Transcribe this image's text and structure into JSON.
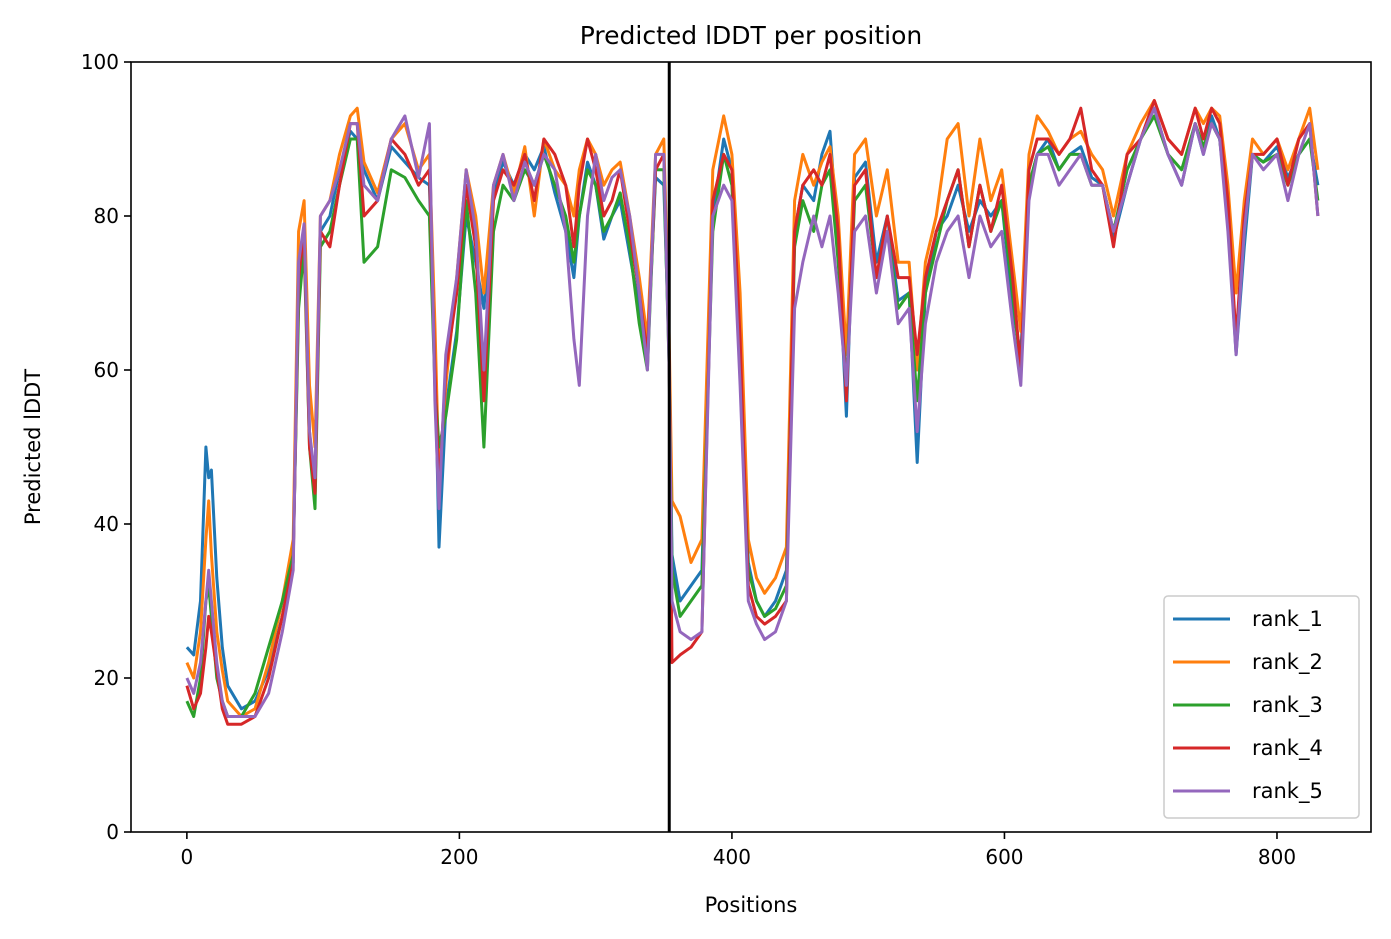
{
  "chart_data": {
    "type": "line",
    "title": "Predicted lDDT per position",
    "xlabel": "Positions",
    "ylabel": "Predicted lDDT",
    "xlim": [
      -41,
      869
    ],
    "ylim": [
      0,
      100
    ],
    "xticks": [
      0,
      200,
      400,
      600,
      800
    ],
    "yticks": [
      0,
      20,
      40,
      60,
      80,
      100
    ],
    "grid": false,
    "legend_position": "lower-right",
    "chain_break_x": 354,
    "series": [
      {
        "name": "rank_1",
        "color": "#1f77b4",
        "x": [
          0,
          5,
          10,
          14,
          16,
          18,
          22,
          26,
          30,
          40,
          50,
          60,
          70,
          78,
          82,
          86,
          90,
          94,
          98,
          105,
          112,
          120,
          125,
          130,
          140,
          150,
          160,
          170,
          178,
          182,
          185,
          190,
          198,
          205,
          212,
          218,
          225,
          232,
          240,
          248,
          255,
          262,
          270,
          278,
          284,
          288,
          294,
          300,
          306,
          312,
          318,
          325,
          332,
          338,
          344,
          350,
          354,
          356,
          362,
          370,
          378,
          386,
          394,
          400,
          406,
          412,
          418,
          424,
          432,
          440,
          446,
          452,
          460,
          466,
          472,
          478,
          484,
          490,
          498,
          506,
          514,
          522,
          530,
          536,
          542,
          550,
          558,
          566,
          574,
          582,
          590,
          598,
          606,
          612,
          618,
          624,
          632,
          640,
          648,
          656,
          664,
          672,
          680,
          690,
          700,
          710,
          720,
          730,
          740,
          746,
          752,
          758,
          764,
          770,
          776,
          782,
          790,
          800,
          808,
          816,
          824,
          830
        ],
        "y": [
          24,
          23,
          30,
          50,
          46,
          47,
          33,
          24,
          19,
          16,
          17,
          21,
          28,
          36,
          70,
          78,
          52,
          44,
          78,
          80,
          86,
          91,
          90,
          86,
          82,
          89,
          87,
          85,
          84,
          62,
          37,
          55,
          65,
          80,
          74,
          68,
          83,
          87,
          84,
          88,
          86,
          89,
          83,
          78,
          72,
          80,
          87,
          84,
          77,
          80,
          82,
          75,
          68,
          62,
          85,
          84,
          62,
          36,
          30,
          32,
          34,
          80,
          90,
          86,
          64,
          35,
          30,
          28,
          30,
          34,
          78,
          84,
          82,
          88,
          91,
          76,
          54,
          85,
          87,
          74,
          80,
          69,
          70,
          48,
          70,
          78,
          80,
          84,
          78,
          82,
          80,
          82,
          68,
          62,
          84,
          88,
          90,
          86,
          88,
          89,
          85,
          84,
          77,
          84,
          90,
          94,
          88,
          84,
          92,
          88,
          93,
          90,
          80,
          62,
          76,
          88,
          87,
          89,
          85,
          88,
          90,
          84
        ]
      },
      {
        "name": "rank_2",
        "color": "#ff7f0e",
        "x": [
          0,
          5,
          10,
          14,
          16,
          18,
          22,
          26,
          30,
          40,
          50,
          60,
          70,
          78,
          82,
          86,
          90,
          94,
          98,
          105,
          112,
          120,
          125,
          130,
          140,
          150,
          160,
          170,
          178,
          182,
          185,
          190,
          198,
          205,
          212,
          218,
          225,
          232,
          240,
          248,
          255,
          262,
          270,
          278,
          284,
          288,
          294,
          300,
          306,
          312,
          318,
          325,
          332,
          338,
          344,
          350,
          354,
          356,
          362,
          370,
          378,
          386,
          394,
          400,
          406,
          412,
          418,
          424,
          432,
          440,
          446,
          452,
          460,
          466,
          472,
          478,
          484,
          490,
          498,
          506,
          514,
          522,
          530,
          536,
          542,
          550,
          558,
          566,
          574,
          582,
          590,
          598,
          606,
          612,
          618,
          624,
          632,
          640,
          648,
          656,
          664,
          672,
          680,
          690,
          700,
          710,
          720,
          730,
          740,
          746,
          752,
          758,
          764,
          770,
          776,
          782,
          790,
          800,
          808,
          816,
          824,
          830
        ],
        "y": [
          22,
          20,
          26,
          38,
          43,
          36,
          26,
          21,
          17,
          15,
          16,
          22,
          30,
          38,
          78,
          82,
          58,
          50,
          80,
          82,
          88,
          93,
          94,
          87,
          83,
          90,
          92,
          86,
          88,
          66,
          46,
          58,
          72,
          86,
          80,
          70,
          84,
          88,
          83,
          89,
          80,
          90,
          86,
          84,
          80,
          86,
          90,
          88,
          84,
          86,
          87,
          80,
          72,
          64,
          88,
          90,
          64,
          43,
          41,
          35,
          38,
          86,
          93,
          88,
          70,
          38,
          33,
          31,
          33,
          37,
          82,
          88,
          84,
          87,
          89,
          80,
          62,
          88,
          90,
          80,
          86,
          74,
          74,
          60,
          74,
          80,
          90,
          92,
          80,
          90,
          82,
          86,
          74,
          65,
          88,
          93,
          91,
          88,
          90,
          91,
          88,
          86,
          80,
          88,
          92,
          95,
          90,
          88,
          94,
          92,
          94,
          93,
          84,
          70,
          82,
          90,
          88,
          90,
          86,
          90,
          94,
          86
        ]
      },
      {
        "name": "rank_3",
        "color": "#2ca02c",
        "x": [
          0,
          5,
          10,
          14,
          16,
          18,
          22,
          26,
          30,
          40,
          50,
          60,
          70,
          78,
          82,
          86,
          90,
          94,
          98,
          105,
          112,
          120,
          125,
          130,
          140,
          150,
          160,
          170,
          178,
          182,
          185,
          190,
          198,
          205,
          212,
          218,
          225,
          232,
          240,
          248,
          255,
          262,
          270,
          278,
          284,
          288,
          294,
          300,
          306,
          312,
          318,
          325,
          332,
          338,
          344,
          350,
          354,
          356,
          362,
          370,
          378,
          386,
          394,
          400,
          406,
          412,
          418,
          424,
          432,
          440,
          446,
          452,
          460,
          466,
          472,
          478,
          484,
          490,
          498,
          506,
          514,
          522,
          530,
          536,
          542,
          550,
          558,
          566,
          574,
          582,
          590,
          598,
          606,
          612,
          618,
          624,
          632,
          640,
          648,
          656,
          664,
          672,
          680,
          690,
          700,
          710,
          720,
          730,
          740,
          746,
          752,
          758,
          764,
          770,
          776,
          782,
          790,
          800,
          808,
          816,
          824,
          830
        ],
        "y": [
          17,
          15,
          20,
          30,
          32,
          28,
          20,
          17,
          15,
          15,
          18,
          24,
          30,
          36,
          68,
          76,
          50,
          42,
          76,
          78,
          84,
          90,
          90,
          74,
          76,
          86,
          85,
          82,
          80,
          58,
          50,
          54,
          64,
          82,
          70,
          50,
          78,
          84,
          82,
          86,
          84,
          88,
          84,
          80,
          74,
          80,
          86,
          84,
          78,
          80,
          83,
          76,
          66,
          60,
          86,
          86,
          60,
          34,
          28,
          30,
          32,
          78,
          88,
          84,
          60,
          34,
          30,
          28,
          29,
          32,
          76,
          82,
          78,
          84,
          86,
          74,
          58,
          82,
          84,
          72,
          78,
          68,
          70,
          56,
          70,
          76,
          82,
          86,
          76,
          84,
          78,
          82,
          70,
          60,
          84,
          88,
          89,
          86,
          88,
          88,
          84,
          84,
          78,
          86,
          90,
          93,
          88,
          86,
          92,
          89,
          92,
          90,
          80,
          64,
          78,
          88,
          87,
          88,
          84,
          88,
          90,
          82
        ]
      },
      {
        "name": "rank_4",
        "color": "#d62728",
        "x": [
          0,
          5,
          10,
          14,
          16,
          18,
          22,
          26,
          30,
          40,
          50,
          60,
          70,
          78,
          82,
          86,
          90,
          94,
          98,
          105,
          112,
          120,
          125,
          130,
          140,
          150,
          160,
          170,
          178,
          182,
          185,
          190,
          198,
          205,
          212,
          218,
          225,
          232,
          240,
          248,
          255,
          262,
          270,
          278,
          284,
          288,
          294,
          300,
          306,
          312,
          318,
          325,
          332,
          338,
          344,
          350,
          354,
          356,
          362,
          370,
          378,
          386,
          394,
          400,
          406,
          412,
          418,
          424,
          432,
          440,
          446,
          452,
          460,
          466,
          472,
          478,
          484,
          490,
          498,
          506,
          514,
          522,
          530,
          536,
          542,
          550,
          558,
          566,
          574,
          582,
          590,
          598,
          606,
          612,
          618,
          624,
          632,
          640,
          648,
          656,
          664,
          672,
          680,
          690,
          700,
          710,
          720,
          730,
          740,
          746,
          752,
          758,
          764,
          770,
          776,
          782,
          790,
          800,
          808,
          816,
          824,
          830
        ],
        "y": [
          19,
          16,
          18,
          24,
          28,
          26,
          21,
          16,
          14,
          14,
          15,
          20,
          28,
          35,
          72,
          78,
          50,
          44,
          78,
          76,
          84,
          92,
          92,
          80,
          82,
          90,
          88,
          84,
          86,
          60,
          44,
          60,
          70,
          84,
          76,
          56,
          82,
          86,
          84,
          88,
          82,
          90,
          88,
          84,
          76,
          84,
          90,
          86,
          80,
          82,
          86,
          78,
          70,
          62,
          86,
          88,
          62,
          22,
          23,
          24,
          26,
          82,
          88,
          86,
          64,
          32,
          28,
          27,
          28,
          30,
          78,
          84,
          86,
          84,
          88,
          78,
          56,
          84,
          86,
          72,
          80,
          72,
          72,
          62,
          72,
          78,
          82,
          86,
          76,
          84,
          78,
          84,
          72,
          60,
          86,
          90,
          90,
          88,
          90,
          94,
          86,
          84,
          76,
          88,
          90,
          95,
          90,
          88,
          94,
          90,
          94,
          92,
          82,
          64,
          80,
          88,
          88,
          90,
          84,
          90,
          92,
          80
        ]
      },
      {
        "name": "rank_5",
        "color": "#9467bd",
        "x": [
          0,
          5,
          10,
          14,
          16,
          18,
          22,
          26,
          30,
          40,
          50,
          60,
          70,
          78,
          82,
          86,
          90,
          94,
          98,
          105,
          112,
          120,
          125,
          130,
          140,
          150,
          160,
          170,
          178,
          182,
          185,
          190,
          198,
          205,
          212,
          218,
          225,
          232,
          240,
          248,
          255,
          262,
          270,
          278,
          284,
          288,
          294,
          300,
          306,
          312,
          318,
          325,
          332,
          338,
          344,
          350,
          354,
          356,
          362,
          370,
          378,
          386,
          394,
          400,
          406,
          412,
          418,
          424,
          432,
          440,
          446,
          452,
          460,
          466,
          472,
          478,
          484,
          490,
          498,
          506,
          514,
          522,
          530,
          536,
          542,
          550,
          558,
          566,
          574,
          582,
          590,
          598,
          606,
          612,
          618,
          624,
          632,
          640,
          648,
          656,
          664,
          672,
          680,
          690,
          700,
          710,
          720,
          730,
          740,
          746,
          752,
          758,
          764,
          770,
          776,
          782,
          790,
          800,
          808,
          816,
          824,
          830
        ],
        "y": [
          20,
          18,
          22,
          30,
          34,
          30,
          22,
          17,
          15,
          15,
          15,
          18,
          26,
          34,
          74,
          79,
          52,
          46,
          80,
          82,
          86,
          92,
          92,
          84,
          82,
          90,
          93,
          85,
          92,
          56,
          42,
          62,
          72,
          86,
          78,
          60,
          84,
          88,
          82,
          87,
          84,
          88,
          86,
          78,
          64,
          58,
          80,
          88,
          82,
          85,
          86,
          80,
          70,
          60,
          88,
          88,
          60,
          30,
          26,
          25,
          26,
          80,
          84,
          82,
          58,
          30,
          27,
          25,
          26,
          30,
          68,
          74,
          80,
          76,
          80,
          70,
          58,
          78,
          80,
          70,
          78,
          66,
          68,
          52,
          66,
          74,
          78,
          80,
          72,
          80,
          76,
          78,
          66,
          58,
          82,
          88,
          88,
          84,
          86,
          88,
          84,
          84,
          78,
          84,
          90,
          94,
          88,
          84,
          92,
          88,
          92,
          90,
          78,
          62,
          78,
          88,
          86,
          88,
          82,
          88,
          92,
          80
        ]
      }
    ]
  }
}
